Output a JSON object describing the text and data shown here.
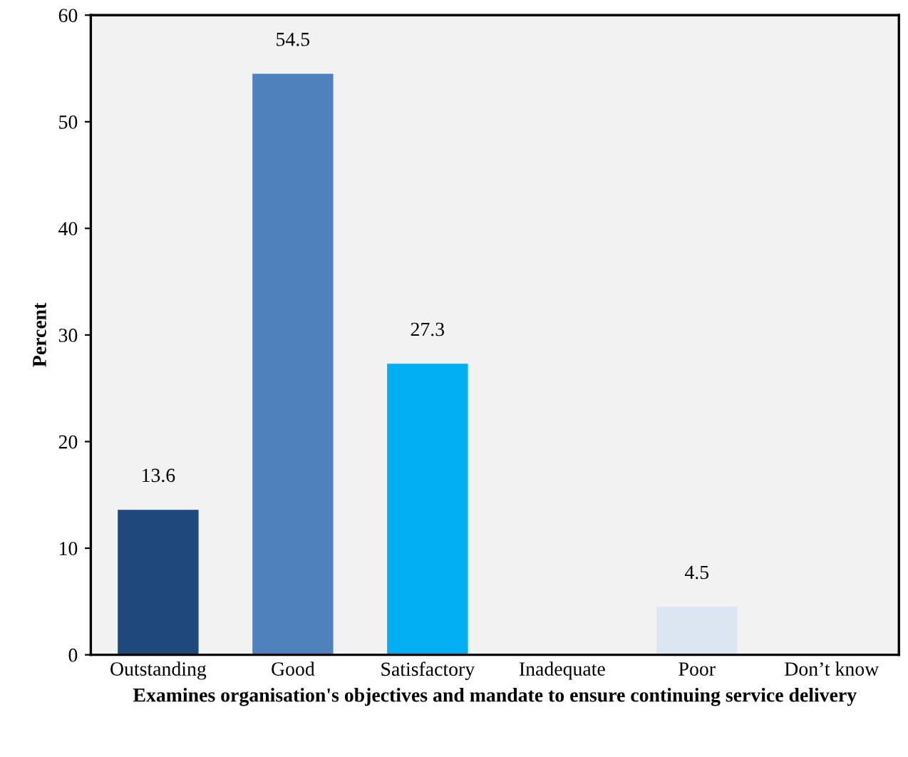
{
  "chart_data": {
    "type": "bar",
    "xlabel": "Examines organisation's objectives and mandate to ensure continuing service delivery",
    "ylabel": "Percent",
    "categories": [
      "Outstanding",
      "Good",
      "Satisfactory",
      "Inadequate",
      "Poor",
      "Don’t know"
    ],
    "values": [
      13.6,
      54.5,
      27.3,
      0,
      4.5,
      0
    ],
    "value_labels": [
      "13.6",
      "54.5",
      "27.3",
      null,
      "4.5",
      null
    ],
    "colors": [
      "#1f497d",
      "#4f81bd",
      "#00b0f0",
      "#c6d9f1",
      "#dce6f2",
      "#c6d9f1"
    ],
    "ylim": [
      0,
      60
    ],
    "yticks": [
      0,
      10,
      20,
      30,
      40,
      50,
      60
    ],
    "grid": false,
    "legend": false
  }
}
